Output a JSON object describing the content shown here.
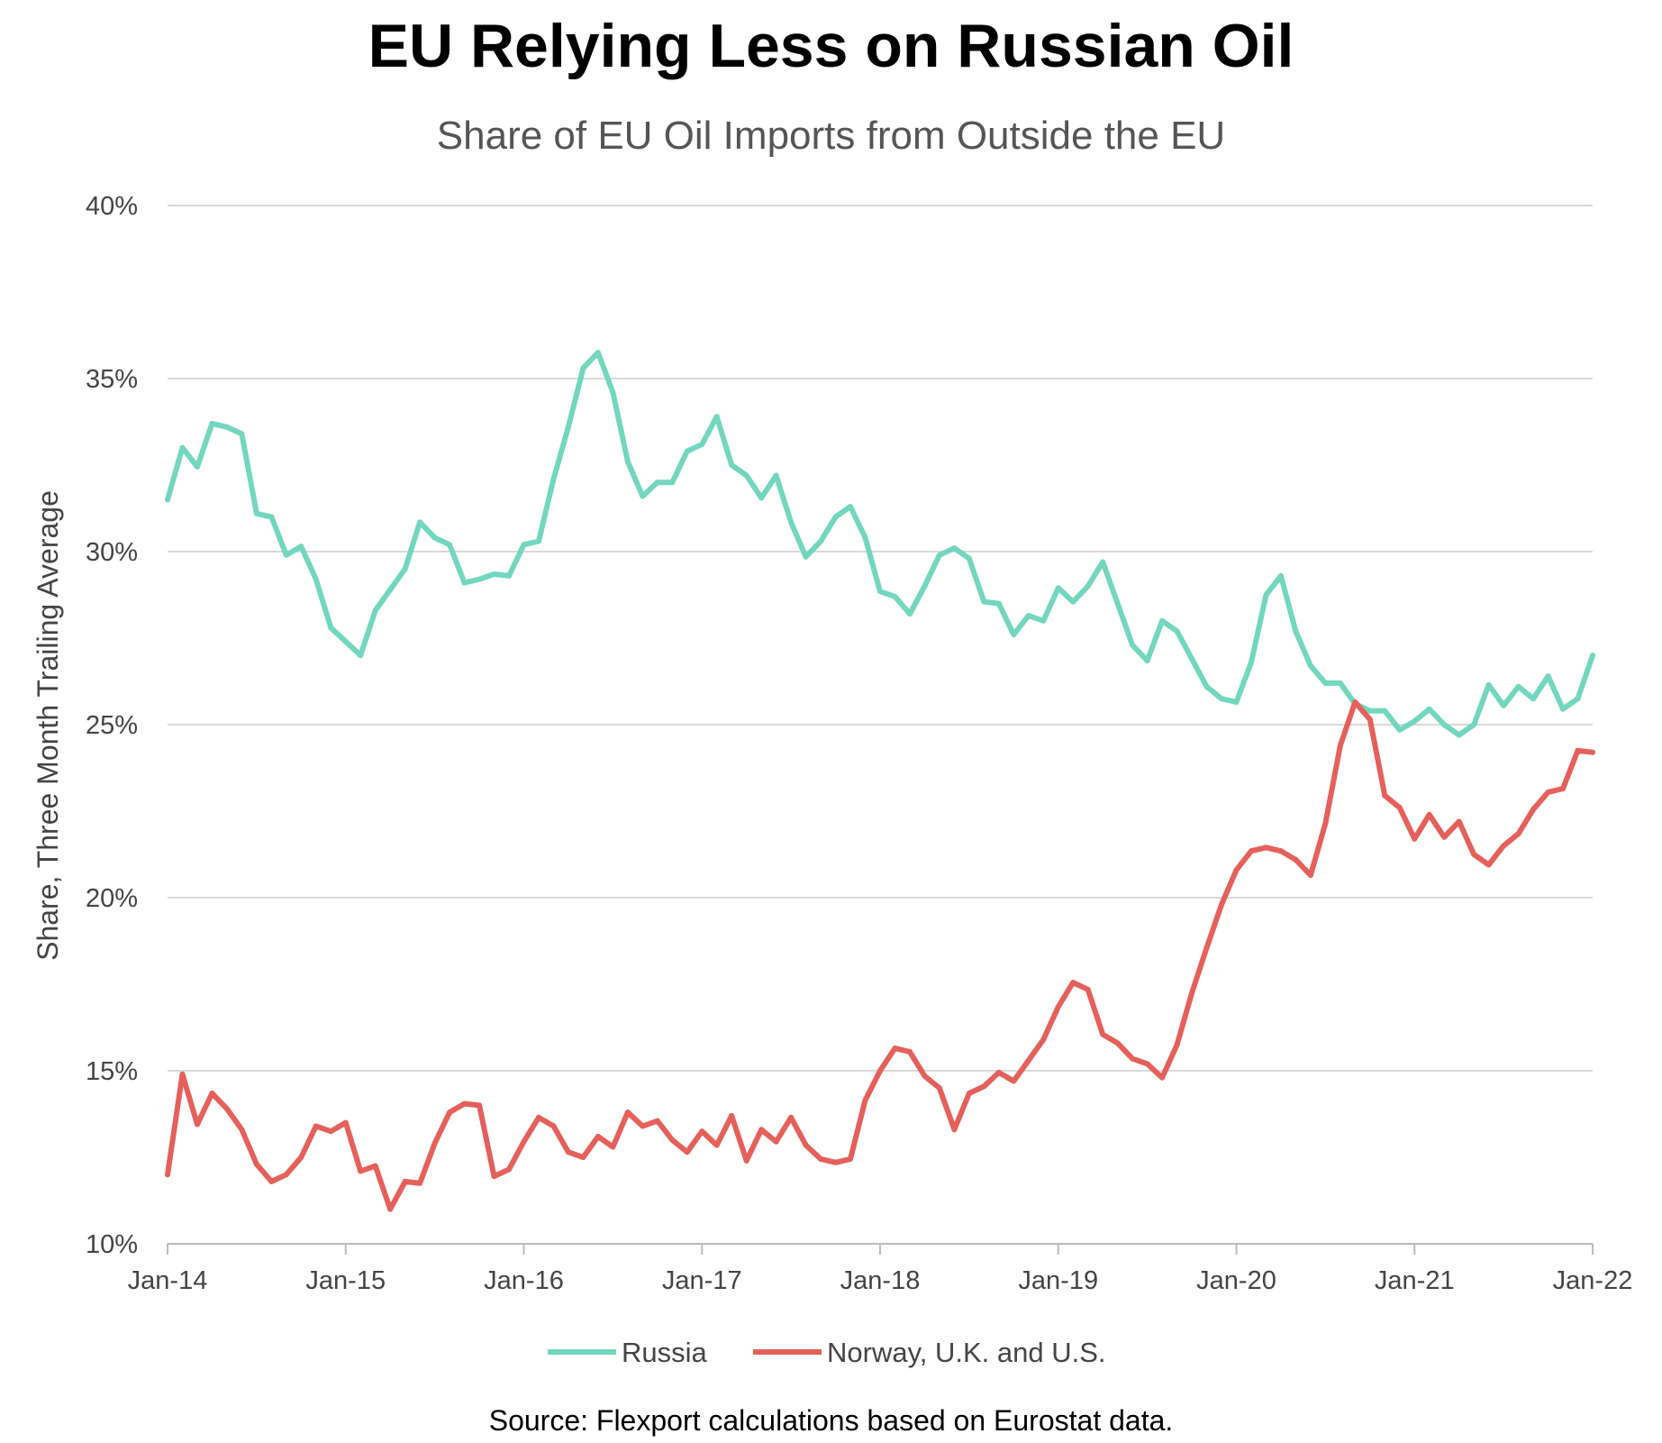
{
  "chart_data": {
    "type": "line",
    "title": "EU Relying Less on Russian Oil",
    "subtitle": "Share of EU Oil Imports from Outside the EU",
    "xlabel": "",
    "ylabel": "Share, Three Month Trailing Average",
    "source": "Source: Flexport calculations based on Eurostat data.",
    "x_start": "Jan-14",
    "x_frequency": "monthly",
    "x_ticks": [
      "Jan-14",
      "Jan-15",
      "Jan-16",
      "Jan-17",
      "Jan-18",
      "Jan-19",
      "Jan-20",
      "Jan-21",
      "Jan-22"
    ],
    "ylim": [
      10,
      40
    ],
    "y_ticks": [
      10,
      15,
      20,
      25,
      30,
      35,
      40
    ],
    "y_tick_labels": [
      "10%",
      "15%",
      "20%",
      "25%",
      "30%",
      "35%",
      "40%"
    ],
    "grid": "horizontal",
    "legend_position": "bottom",
    "series": [
      {
        "name": "Russia",
        "color": "#72d7be",
        "values": [
          31.5,
          33.0,
          32.45,
          33.7,
          33.6,
          33.4,
          31.1,
          31.0,
          29.9,
          30.15,
          29.2,
          27.8,
          27.4,
          27.0,
          28.3,
          28.9,
          29.5,
          30.85,
          30.4,
          30.2,
          29.1,
          29.2,
          29.35,
          29.3,
          30.2,
          30.3,
          32.1,
          33.6,
          35.3,
          35.75,
          34.6,
          32.6,
          31.6,
          32.0,
          32.0,
          32.9,
          33.1,
          33.9,
          32.5,
          32.2,
          31.55,
          32.2,
          30.85,
          29.85,
          30.3,
          31.0,
          31.3,
          30.4,
          28.85,
          28.7,
          28.2,
          29.0,
          29.9,
          30.1,
          29.8,
          28.55,
          28.5,
          27.6,
          28.15,
          28.0,
          28.95,
          28.55,
          29.0,
          29.7,
          28.5,
          27.3,
          26.85,
          28.0,
          27.7,
          26.9,
          26.1,
          25.75,
          25.65,
          26.8,
          28.75,
          29.3,
          27.7,
          26.7,
          26.2,
          26.2,
          25.6,
          25.4,
          25.4,
          24.85,
          25.1,
          25.45,
          25.0,
          24.7,
          25.0,
          26.15,
          25.55,
          26.1,
          25.75,
          26.4,
          25.45,
          25.75,
          27.0
        ]
      },
      {
        "name": "Norway, U.K. and U.S.",
        "color": "#e5605a",
        "values": [
          12.0,
          14.9,
          13.45,
          14.35,
          13.9,
          13.3,
          12.3,
          11.8,
          12.0,
          12.5,
          13.4,
          13.25,
          13.5,
          12.1,
          12.25,
          11.0,
          11.8,
          11.75,
          12.9,
          13.8,
          14.05,
          14.0,
          11.95,
          12.15,
          12.95,
          13.65,
          13.4,
          12.65,
          12.5,
          13.1,
          12.8,
          13.8,
          13.4,
          13.55,
          13.0,
          12.65,
          13.25,
          12.85,
          13.7,
          12.4,
          13.3,
          12.95,
          13.65,
          12.85,
          12.45,
          12.35,
          12.45,
          14.15,
          15.0,
          15.65,
          15.55,
          14.85,
          14.5,
          13.3,
          14.35,
          14.55,
          14.95,
          14.7,
          15.3,
          15.9,
          16.85,
          17.55,
          17.35,
          16.05,
          15.8,
          15.35,
          15.2,
          14.8,
          15.75,
          17.25,
          18.55,
          19.8,
          20.8,
          21.35,
          21.45,
          21.35,
          21.1,
          20.65,
          22.15,
          24.4,
          25.65,
          25.15,
          22.95,
          22.6,
          21.7,
          22.4,
          21.75,
          22.2,
          21.25,
          20.95,
          21.5,
          21.85,
          22.55,
          23.05,
          23.15,
          24.25,
          24.2
        ]
      }
    ]
  }
}
